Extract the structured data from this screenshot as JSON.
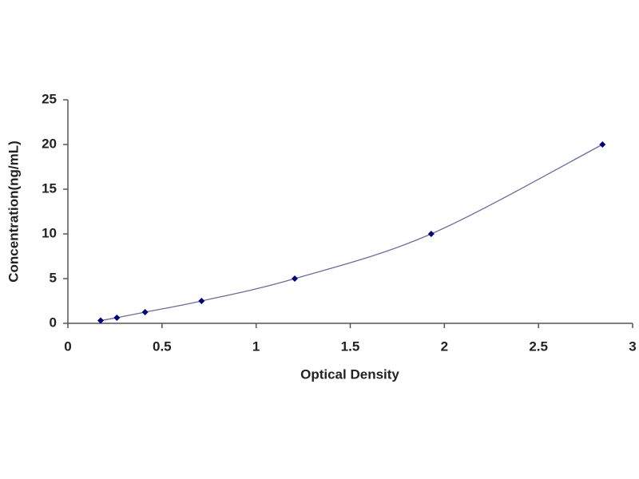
{
  "chart_data": {
    "type": "scatter_line",
    "x_label": "Optical Density",
    "y_label": "Concentration(ng/mL)",
    "x": [
      0.174,
      0.26,
      0.41,
      0.71,
      1.205,
      1.93,
      2.84
    ],
    "values": [
      0.31,
      0.63,
      1.25,
      2.5,
      5,
      10,
      20
    ],
    "color": "#000080",
    "line_color": "#6a6aa8",
    "xlim": [
      0,
      3
    ],
    "xticks": [
      0,
      0.5,
      1,
      1.5,
      2,
      2.5,
      3
    ],
    "ylim": [
      0,
      25
    ],
    "yticks": [
      0,
      5,
      10,
      15,
      20,
      25
    ]
  }
}
